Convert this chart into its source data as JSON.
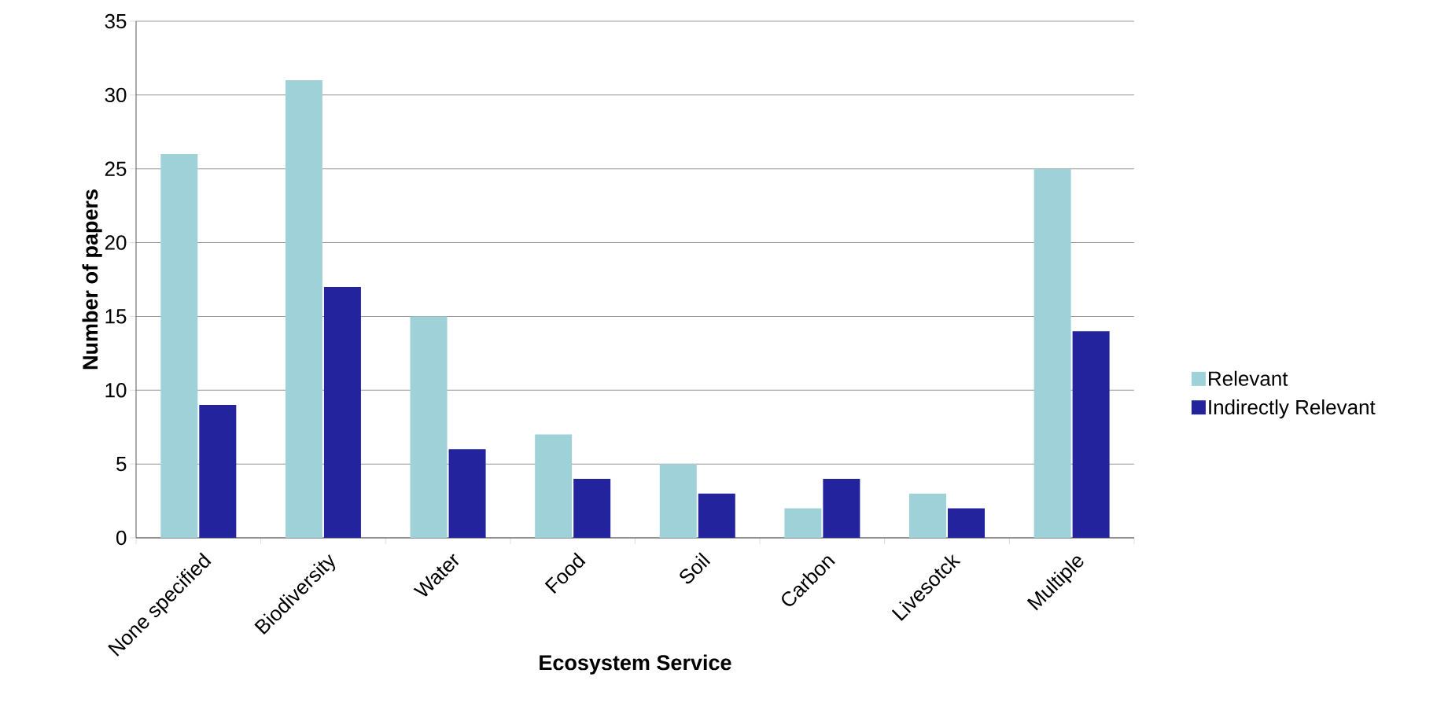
{
  "chart_data": {
    "type": "bar",
    "xlabel": "Ecosystem Service",
    "ylabel": "Number of papers",
    "categories": [
      "None specified",
      "Biodiversity",
      "Water",
      "Food",
      "Soil",
      "Carbon",
      "Livesotck",
      "Multiple"
    ],
    "series": [
      {
        "name": "Relevant",
        "color": "#9fd2d8",
        "values": [
          26,
          31,
          15,
          7,
          5,
          2,
          3,
          25
        ]
      },
      {
        "name": "Indirectly Relevant",
        "color": "#23239e",
        "values": [
          9,
          17,
          6,
          4,
          3,
          4,
          2,
          14
        ]
      }
    ],
    "ylim": [
      0,
      35
    ],
    "yticks": [
      0,
      5,
      10,
      15,
      20,
      25,
      30,
      35
    ],
    "grid": "y",
    "legend": "right"
  }
}
